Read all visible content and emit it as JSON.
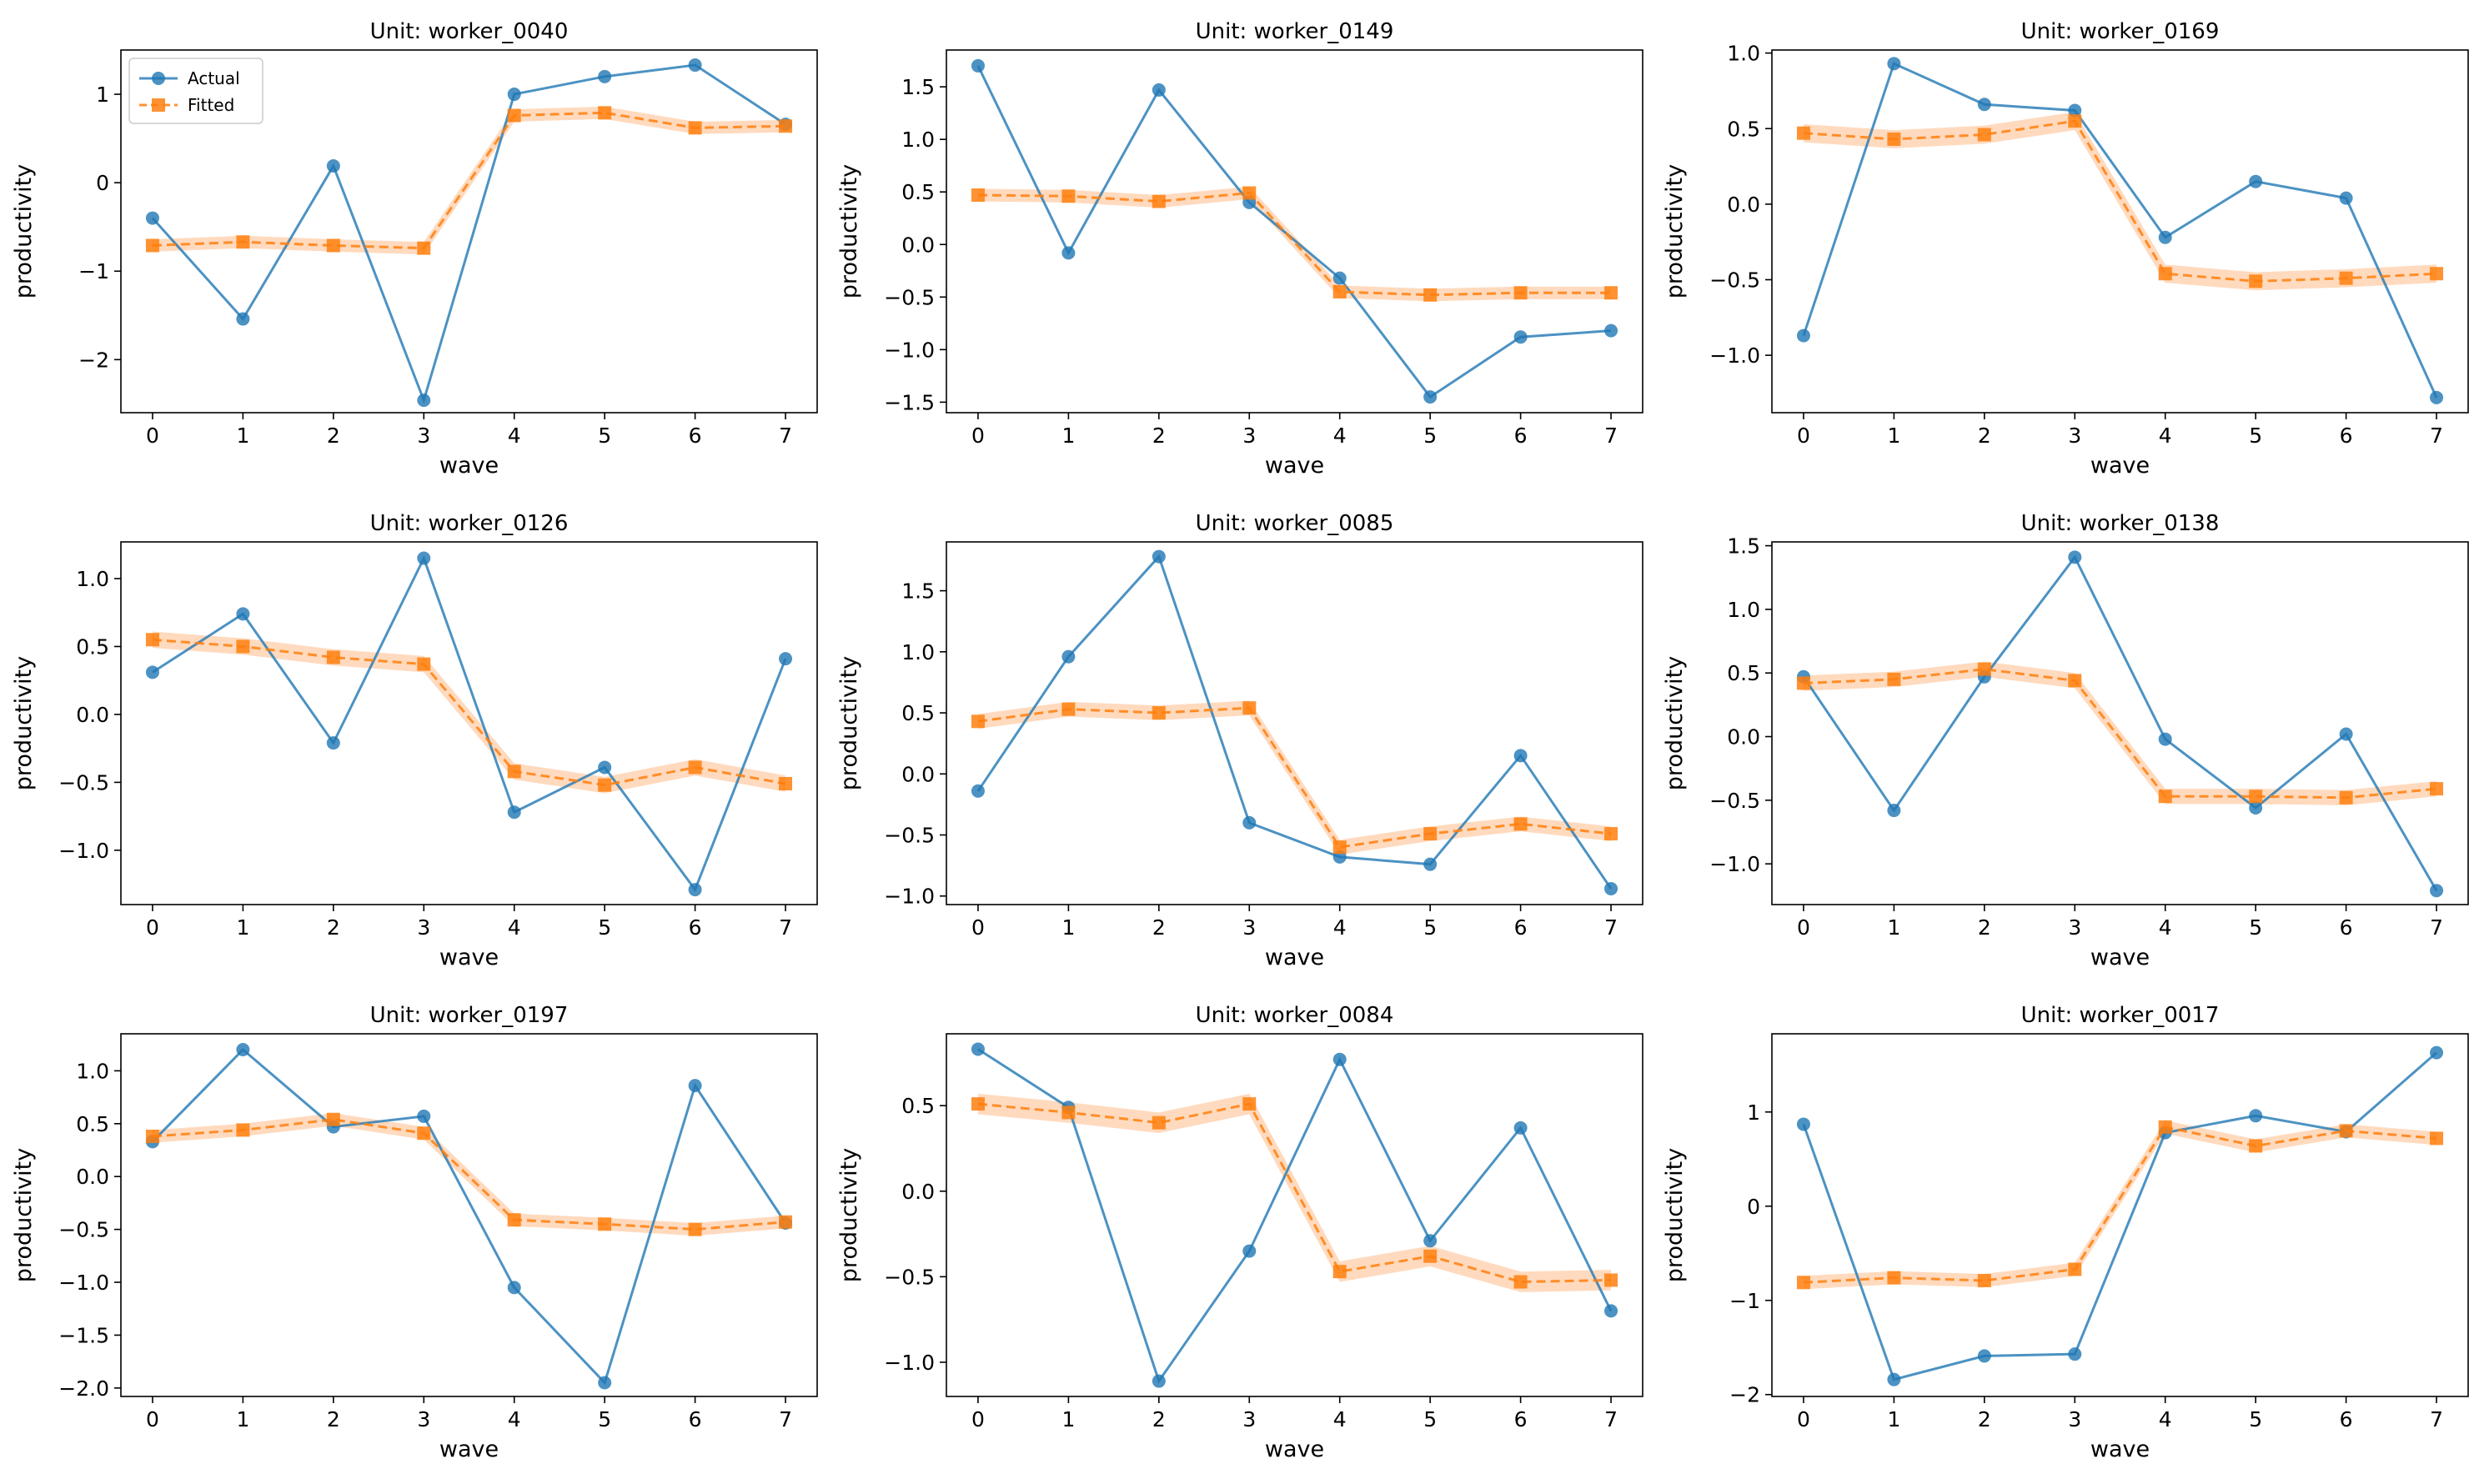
{
  "chart_data": [
    {
      "type": "line",
      "title": "Unit: worker_0040",
      "xlabel": "wave",
      "ylabel": "productivity",
      "x": [
        0,
        1,
        2,
        3,
        4,
        5,
        6,
        7
      ],
      "ylim": [
        -2.6,
        1.5
      ],
      "yticks": [
        -2,
        -1,
        0,
        1
      ],
      "ytick_labels": [
        "−2",
        "−1",
        "0",
        "1"
      ],
      "legend": [
        "Actual",
        "Fitted"
      ],
      "legend_position": "top-left",
      "series": [
        {
          "name": "Actual",
          "values": [
            -0.4,
            -1.54,
            0.19,
            -2.46,
            1.0,
            1.2,
            1.33,
            0.66
          ]
        },
        {
          "name": "Fitted",
          "values": [
            -0.71,
            -0.67,
            -0.71,
            -0.74,
            0.76,
            0.79,
            0.62,
            0.64
          ],
          "band": 0.07
        }
      ]
    },
    {
      "type": "line",
      "title": "Unit: worker_0149",
      "xlabel": "wave",
      "ylabel": "productivity",
      "x": [
        0,
        1,
        2,
        3,
        4,
        5,
        6,
        7
      ],
      "ylim": [
        -1.6,
        1.85
      ],
      "yticks": [
        -1.5,
        -1.0,
        -0.5,
        0.0,
        0.5,
        1.0,
        1.5
      ],
      "ytick_labels": [
        "−1.5",
        "−1.0",
        "−0.5",
        "0.0",
        "0.5",
        "1.0",
        "1.5"
      ],
      "series": [
        {
          "name": "Actual",
          "values": [
            1.7,
            -0.08,
            1.47,
            0.4,
            -0.32,
            -1.45,
            -0.88,
            -0.82
          ]
        },
        {
          "name": "Fitted",
          "values": [
            0.47,
            0.46,
            0.41,
            0.49,
            -0.45,
            -0.48,
            -0.46,
            -0.46
          ],
          "band": 0.06
        }
      ]
    },
    {
      "type": "line",
      "title": "Unit: worker_0169",
      "xlabel": "wave",
      "ylabel": "productivity",
      "x": [
        0,
        1,
        2,
        3,
        4,
        5,
        6,
        7
      ],
      "ylim": [
        -1.38,
        1.02
      ],
      "yticks": [
        -1.0,
        -0.5,
        0.0,
        0.5,
        1.0
      ],
      "ytick_labels": [
        "−1.0",
        "−0.5",
        "0.0",
        "0.5",
        "1.0"
      ],
      "series": [
        {
          "name": "Actual",
          "values": [
            -0.87,
            0.93,
            0.66,
            0.62,
            -0.22,
            0.15,
            0.04,
            -1.28
          ]
        },
        {
          "name": "Fitted",
          "values": [
            0.47,
            0.43,
            0.46,
            0.55,
            -0.46,
            -0.51,
            -0.49,
            -0.46
          ],
          "band": 0.06
        }
      ]
    },
    {
      "type": "line",
      "title": "Unit: worker_0126",
      "xlabel": "wave",
      "ylabel": "productivity",
      "x": [
        0,
        1,
        2,
        3,
        4,
        5,
        6,
        7
      ],
      "ylim": [
        -1.4,
        1.27
      ],
      "yticks": [
        -1.0,
        -0.5,
        0.0,
        0.5,
        1.0
      ],
      "ytick_labels": [
        "−1.0",
        "−0.5",
        "0.0",
        "0.5",
        "1.0"
      ],
      "series": [
        {
          "name": "Actual",
          "values": [
            0.31,
            0.74,
            -0.21,
            1.15,
            -0.72,
            -0.39,
            -1.29,
            0.41
          ]
        },
        {
          "name": "Fitted",
          "values": [
            0.55,
            0.5,
            0.42,
            0.37,
            -0.42,
            -0.52,
            -0.39,
            -0.51
          ],
          "band": 0.06
        }
      ]
    },
    {
      "type": "line",
      "title": "Unit: worker_0085",
      "xlabel": "wave",
      "ylabel": "productivity",
      "x": [
        0,
        1,
        2,
        3,
        4,
        5,
        6,
        7
      ],
      "ylim": [
        -1.07,
        1.9
      ],
      "yticks": [
        -1.0,
        -0.5,
        0.0,
        0.5,
        1.0,
        1.5
      ],
      "ytick_labels": [
        "−1.0",
        "−0.5",
        "0.0",
        "0.5",
        "1.0",
        "1.5"
      ],
      "series": [
        {
          "name": "Actual",
          "values": [
            -0.14,
            0.96,
            1.78,
            -0.4,
            -0.68,
            -0.74,
            0.15,
            -0.94
          ]
        },
        {
          "name": "Fitted",
          "values": [
            0.43,
            0.53,
            0.5,
            0.54,
            -0.6,
            -0.49,
            -0.41,
            -0.49
          ],
          "band": 0.06
        }
      ]
    },
    {
      "type": "line",
      "title": "Unit: worker_0138",
      "xlabel": "wave",
      "ylabel": "productivity",
      "x": [
        0,
        1,
        2,
        3,
        4,
        5,
        6,
        7
      ],
      "ylim": [
        -1.32,
        1.53
      ],
      "yticks": [
        -1.0,
        -0.5,
        0.0,
        0.5,
        1.0,
        1.5
      ],
      "ytick_labels": [
        "−1.0",
        "−0.5",
        "0.0",
        "0.5",
        "1.0",
        "1.5"
      ],
      "series": [
        {
          "name": "Actual",
          "values": [
            0.47,
            -0.58,
            0.47,
            1.41,
            -0.02,
            -0.56,
            0.02,
            -1.21
          ]
        },
        {
          "name": "Fitted",
          "values": [
            0.42,
            0.45,
            0.53,
            0.44,
            -0.47,
            -0.47,
            -0.48,
            -0.41
          ],
          "band": 0.06
        }
      ]
    },
    {
      "type": "line",
      "title": "Unit: worker_0197",
      "xlabel": "wave",
      "ylabel": "productivity",
      "x": [
        0,
        1,
        2,
        3,
        4,
        5,
        6,
        7
      ],
      "ylim": [
        -2.08,
        1.35
      ],
      "yticks": [
        -2.0,
        -1.5,
        -1.0,
        -0.5,
        0.0,
        0.5,
        1.0
      ],
      "ytick_labels": [
        "−2.0",
        "−1.5",
        "−1.0",
        "−0.5",
        "0.0",
        "0.5",
        "1.0"
      ],
      "series": [
        {
          "name": "Actual",
          "values": [
            0.33,
            1.2,
            0.47,
            0.57,
            -1.05,
            -1.95,
            0.86,
            -0.44
          ]
        },
        {
          "name": "Fitted",
          "values": [
            0.38,
            0.44,
            0.54,
            0.41,
            -0.41,
            -0.45,
            -0.5,
            -0.43
          ],
          "band": 0.06
        }
      ]
    },
    {
      "type": "line",
      "title": "Unit: worker_0084",
      "xlabel": "wave",
      "ylabel": "productivity",
      "x": [
        0,
        1,
        2,
        3,
        4,
        5,
        6,
        7
      ],
      "ylim": [
        -1.2,
        0.92
      ],
      "yticks": [
        -1.0,
        -0.5,
        0.0,
        0.5
      ],
      "ytick_labels": [
        "−1.0",
        "−0.5",
        "0.0",
        "0.5"
      ],
      "series": [
        {
          "name": "Actual",
          "values": [
            0.83,
            0.49,
            -1.11,
            -0.35,
            0.77,
            -0.29,
            0.37,
            -0.7
          ]
        },
        {
          "name": "Fitted",
          "values": [
            0.51,
            0.46,
            0.4,
            0.51,
            -0.47,
            -0.38,
            -0.53,
            -0.52
          ],
          "band": 0.06
        }
      ]
    },
    {
      "type": "line",
      "title": "Unit: worker_0017",
      "xlabel": "wave",
      "ylabel": "productivity",
      "x": [
        0,
        1,
        2,
        3,
        4,
        5,
        6,
        7
      ],
      "ylim": [
        -2.02,
        1.83
      ],
      "yticks": [
        -2,
        -1,
        0,
        1
      ],
      "ytick_labels": [
        "−2",
        "−1",
        "0",
        "1"
      ],
      "series": [
        {
          "name": "Actual",
          "values": [
            0.87,
            -1.84,
            -1.59,
            -1.57,
            0.78,
            0.96,
            0.79,
            1.63
          ]
        },
        {
          "name": "Fitted",
          "values": [
            -0.81,
            -0.76,
            -0.79,
            -0.67,
            0.84,
            0.64,
            0.8,
            0.72
          ],
          "band": 0.07
        }
      ]
    }
  ],
  "colors": {
    "actual": "#1f77b4",
    "fitted": "#ff7f0e",
    "band": "#ffbb88",
    "axis": "#000000"
  }
}
